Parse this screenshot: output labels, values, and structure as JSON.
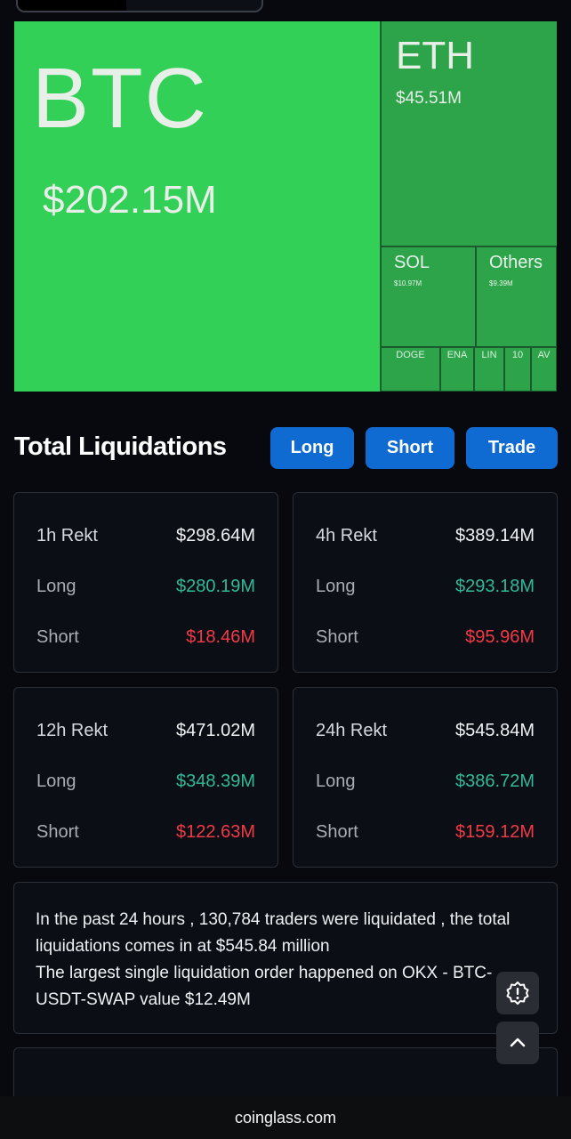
{
  "treemap": {
    "tiles": [
      {
        "symbol": "BTC",
        "value": "$202.15M"
      },
      {
        "symbol": "ETH",
        "value": "$45.51M"
      },
      {
        "symbol": "SOL",
        "value": "$10.97M"
      },
      {
        "symbol": "Others",
        "value": "$9.39M"
      },
      {
        "symbol": "DOGE"
      },
      {
        "symbol": "ENA"
      },
      {
        "symbol": "LIN"
      },
      {
        "symbol": "10"
      },
      {
        "symbol": "AV"
      }
    ]
  },
  "header": {
    "title": "Total Liquidations",
    "buttons": {
      "long": "Long",
      "short": "Short",
      "trade": "Trade"
    }
  },
  "cards": [
    {
      "label": "1h Rekt",
      "total": "$298.64M",
      "long_label": "Long",
      "long": "$280.19M",
      "short_label": "Short",
      "short": "$18.46M"
    },
    {
      "label": "4h Rekt",
      "total": "$389.14M",
      "long_label": "Long",
      "long": "$293.18M",
      "short_label": "Short",
      "short": "$95.96M"
    },
    {
      "label": "12h Rekt",
      "total": "$471.02M",
      "long_label": "Long",
      "long": "$348.39M",
      "short_label": "Short",
      "short": "$122.63M"
    },
    {
      "label": "24h Rekt",
      "total": "$545.84M",
      "long_label": "Long",
      "long": "$386.72M",
      "short_label": "Short",
      "short": "$159.12M"
    }
  ],
  "summary": {
    "line1": "In the past 24 hours , 130,784 traders were liquidated , the total liquidations comes in at $545.84 million",
    "line2": "The largest single liquidation order happened on OKX - BTC-USDT-SWAP value $12.49M"
  },
  "floating": {
    "feedback_icon": "alert-badge-icon",
    "scroll_top_icon": "chevron-up-icon"
  },
  "footer": {
    "domain": "coinglass.com"
  },
  "colors": {
    "accent": "#0f6bd1",
    "long": "#32b89a",
    "short": "#f23a47",
    "treemap_btc": "#33d058",
    "treemap_other": "#2ea44a"
  }
}
